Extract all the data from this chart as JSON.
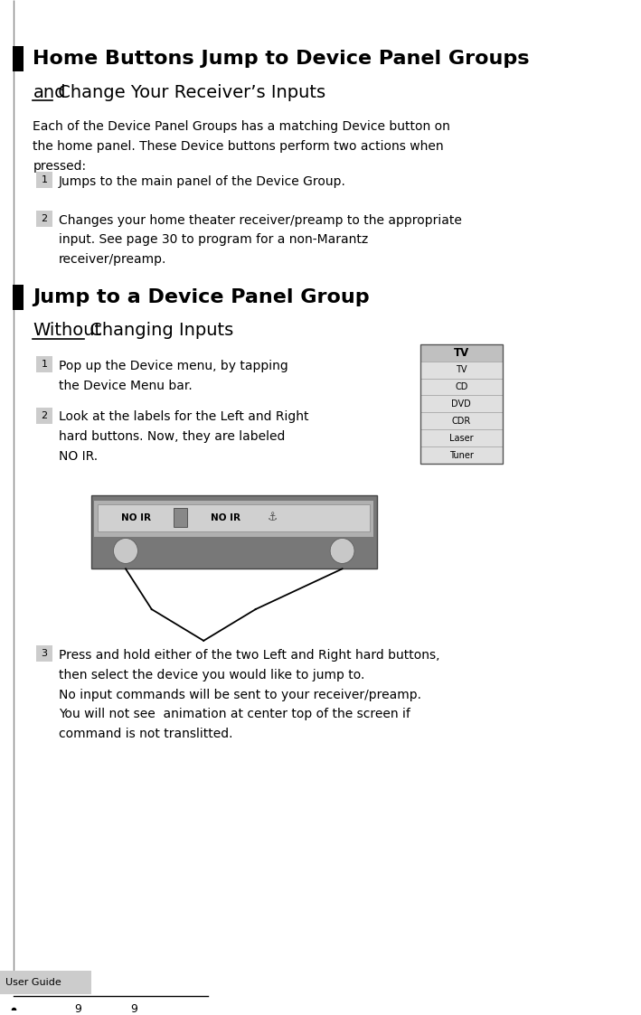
{
  "bg_color": "#ffffff",
  "page_width": 7.09,
  "page_height": 11.23,
  "black_marker_color": "#000000",
  "heading1_text": "Home Buttons Jump to Device Panel Groups",
  "heading2_part1": "and",
  "heading2_part2": " Change Your Receiver’s Inputs",
  "body1_lines": [
    "Each of the Device Panel Groups has a matching Device button on",
    "the home panel. These Device buttons perform two actions when",
    "pressed:"
  ],
  "step1a_num": "1",
  "step1a_text": "Jumps to the main panel of the Device Group.",
  "step1b_num": "2",
  "step1b_lines": [
    "Changes your home theater receiver/preamp to the appropriate",
    "input. See page 30 to program for a non-Marantz",
    "receiver/preamp."
  ],
  "heading3_text": "Jump to a Device Panel Group",
  "heading4_part1": "Without",
  "heading4_part2": " Changing Inputs",
  "step2a_num": "1",
  "step2a_lines": [
    "Pop up the Device menu, by tapping",
    "the Device Menu bar."
  ],
  "step2b_num": "2",
  "step2b_lines": [
    "Look at the labels for the Left and Right",
    "hard buttons. Now, they are labeled",
    "NO IR."
  ],
  "step2c_num": "3",
  "step2c_lines": [
    "Press and hold either of the two Left and Right hard buttons,",
    "then select the device you would like to jump to.",
    "No input commands will be sent to your receiver/preamp.",
    "You will not see  animation at center top of the screen if",
    "command is not translitted."
  ],
  "footer_text": "User Guide",
  "page_num": "9",
  "num_badge_color": "#cccccc",
  "num_badge_text_color": "#000000",
  "line_color": "#000000",
  "sidebar_line_color": "#888888",
  "tv_menu_items": [
    "TV",
    "TV",
    "CD",
    "DVD",
    "CDR",
    "Laser",
    "Tuner"
  ],
  "dots_color": "#000000"
}
